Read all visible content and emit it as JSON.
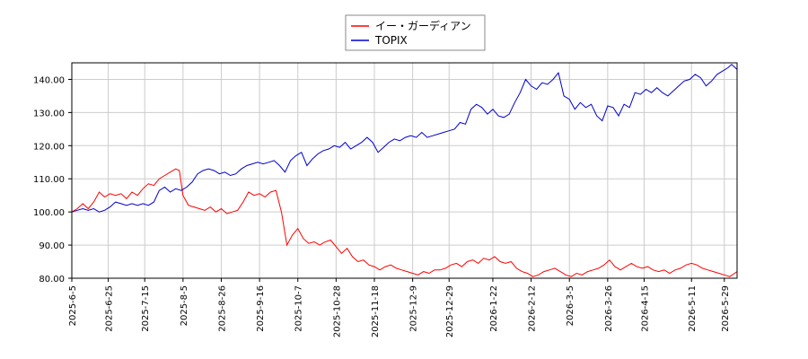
{
  "chart_data": {
    "type": "line",
    "title": "",
    "xlabel": "",
    "ylabel": "",
    "ylim": [
      80,
      145
    ],
    "y_ticks": [
      80,
      90,
      100,
      110,
      120,
      130,
      140
    ],
    "y_tick_labels": [
      "80.00",
      "90.00",
      "100.00",
      "110.00",
      "120.00",
      "130.00",
      "140.00"
    ],
    "x_range": [
      "2025-06-05",
      "2026-06-05"
    ],
    "x_ticks": [
      "2025-06-05",
      "2025-06-25",
      "2025-07-15",
      "2025-08-05",
      "2025-08-26",
      "2025-09-16",
      "2025-10-07",
      "2025-10-28",
      "2025-11-18",
      "2025-12-09",
      "2025-12-29",
      "2026-01-22",
      "2026-02-12",
      "2026-03-05",
      "2026-03-26",
      "2026-04-15",
      "2026-05-11",
      "2026-05-29"
    ],
    "x_tick_labels": [
      "2025-6-5",
      "2025-6-25",
      "2025-7-15",
      "2025-8-5",
      "2025-8-26",
      "2025-9-16",
      "2025-10-7",
      "2025-10-28",
      "2025-11-18",
      "2025-12-9",
      "2025-12-29",
      "2026-1-22",
      "2026-2-12",
      "2026-3-5",
      "2026-3-26",
      "2026-4-15",
      "2026-5-11",
      "2026-5-29"
    ],
    "grid": true,
    "legend_placement": "top-center",
    "series": [
      {
        "name": "イー・ガーディアン",
        "color": "#ff0000",
        "points": [
          [
            "2025-06-05",
            100.0
          ],
          [
            "2025-06-08",
            101.0
          ],
          [
            "2025-06-11",
            102.5
          ],
          [
            "2025-06-14",
            101.0
          ],
          [
            "2025-06-17",
            103.0
          ],
          [
            "2025-06-20",
            106.0
          ],
          [
            "2025-06-23",
            104.5
          ],
          [
            "2025-06-26",
            105.5
          ],
          [
            "2025-06-29",
            105.0
          ],
          [
            "2025-07-02",
            105.5
          ],
          [
            "2025-07-05",
            104.0
          ],
          [
            "2025-07-08",
            106.0
          ],
          [
            "2025-07-11",
            105.0
          ],
          [
            "2025-07-14",
            107.0
          ],
          [
            "2025-07-17",
            108.5
          ],
          [
            "2025-07-20",
            108.0
          ],
          [
            "2025-07-23",
            110.0
          ],
          [
            "2025-07-26",
            111.0
          ],
          [
            "2025-07-29",
            112.0
          ],
          [
            "2025-08-01",
            113.0
          ],
          [
            "2025-08-03",
            112.5
          ],
          [
            "2025-08-05",
            105.0
          ],
          [
            "2025-08-08",
            102.0
          ],
          [
            "2025-08-11",
            101.5
          ],
          [
            "2025-08-14",
            101.0
          ],
          [
            "2025-08-17",
            100.5
          ],
          [
            "2025-08-20",
            101.5
          ],
          [
            "2025-08-23",
            100.0
          ],
          [
            "2025-08-26",
            101.0
          ],
          [
            "2025-08-29",
            99.5
          ],
          [
            "2025-09-01",
            100.0
          ],
          [
            "2025-09-04",
            100.5
          ],
          [
            "2025-09-07",
            103.0
          ],
          [
            "2025-09-10",
            106.0
          ],
          [
            "2025-09-13",
            105.0
          ],
          [
            "2025-09-16",
            105.5
          ],
          [
            "2025-09-19",
            104.5
          ],
          [
            "2025-09-22",
            106.0
          ],
          [
            "2025-09-25",
            106.5
          ],
          [
            "2025-09-28",
            100.0
          ],
          [
            "2025-10-01",
            90.0
          ],
          [
            "2025-10-04",
            93.0
          ],
          [
            "2025-10-07",
            95.0
          ],
          [
            "2025-10-10",
            92.0
          ],
          [
            "2025-10-13",
            90.5
          ],
          [
            "2025-10-16",
            91.0
          ],
          [
            "2025-10-19",
            90.0
          ],
          [
            "2025-10-22",
            91.0
          ],
          [
            "2025-10-25",
            91.5
          ],
          [
            "2025-10-28",
            89.5
          ],
          [
            "2025-10-31",
            87.5
          ],
          [
            "2025-11-03",
            89.0
          ],
          [
            "2025-11-06",
            86.5
          ],
          [
            "2025-11-09",
            85.0
          ],
          [
            "2025-11-12",
            85.5
          ],
          [
            "2025-11-15",
            84.0
          ],
          [
            "2025-11-18",
            83.5
          ],
          [
            "2025-11-21",
            82.5
          ],
          [
            "2025-11-24",
            83.5
          ],
          [
            "2025-11-27",
            84.0
          ],
          [
            "2025-11-30",
            83.0
          ],
          [
            "2025-12-03",
            82.5
          ],
          [
            "2025-12-06",
            82.0
          ],
          [
            "2025-12-09",
            81.5
          ],
          [
            "2025-12-12",
            81.0
          ],
          [
            "2025-12-15",
            82.0
          ],
          [
            "2025-12-18",
            81.5
          ],
          [
            "2025-12-21",
            82.5
          ],
          [
            "2025-12-24",
            82.5
          ],
          [
            "2025-12-27",
            83.0
          ],
          [
            "2025-12-30",
            84.0
          ],
          [
            "2026-01-02",
            84.5
          ],
          [
            "2026-01-05",
            83.5
          ],
          [
            "2026-01-08",
            85.0
          ],
          [
            "2026-01-11",
            85.5
          ],
          [
            "2026-01-14",
            84.5
          ],
          [
            "2026-01-17",
            86.0
          ],
          [
            "2026-01-20",
            85.5
          ],
          [
            "2026-01-23",
            86.5
          ],
          [
            "2026-01-26",
            85.0
          ],
          [
            "2026-01-29",
            84.5
          ],
          [
            "2026-02-01",
            85.0
          ],
          [
            "2026-02-04",
            83.0
          ],
          [
            "2026-02-07",
            82.0
          ],
          [
            "2026-02-10",
            81.5
          ],
          [
            "2026-02-13",
            80.5
          ],
          [
            "2026-02-16",
            81.0
          ],
          [
            "2026-02-19",
            82.0
          ],
          [
            "2026-02-22",
            82.5
          ],
          [
            "2026-02-25",
            83.0
          ],
          [
            "2026-02-28",
            82.0
          ],
          [
            "2026-03-03",
            81.0
          ],
          [
            "2026-03-06",
            80.5
          ],
          [
            "2026-03-09",
            81.5
          ],
          [
            "2026-03-12",
            81.0
          ],
          [
            "2026-03-15",
            82.0
          ],
          [
            "2026-03-18",
            82.5
          ],
          [
            "2026-03-21",
            83.0
          ],
          [
            "2026-03-24",
            84.0
          ],
          [
            "2026-03-27",
            85.5
          ],
          [
            "2026-03-30",
            83.5
          ],
          [
            "2026-04-02",
            82.5
          ],
          [
            "2026-04-05",
            83.5
          ],
          [
            "2026-04-08",
            84.5
          ],
          [
            "2026-04-11",
            83.5
          ],
          [
            "2026-04-14",
            83.0
          ],
          [
            "2026-04-17",
            83.5
          ],
          [
            "2026-04-20",
            82.5
          ],
          [
            "2026-04-23",
            82.0
          ],
          [
            "2026-04-26",
            82.5
          ],
          [
            "2026-04-29",
            81.5
          ],
          [
            "2026-05-02",
            82.5
          ],
          [
            "2026-05-05",
            83.0
          ],
          [
            "2026-05-08",
            84.0
          ],
          [
            "2026-05-11",
            84.5
          ],
          [
            "2026-05-14",
            84.0
          ],
          [
            "2026-05-17",
            83.0
          ],
          [
            "2026-05-20",
            82.5
          ],
          [
            "2026-05-23",
            82.0
          ],
          [
            "2026-05-26",
            81.5
          ],
          [
            "2026-05-29",
            81.0
          ],
          [
            "2026-06-01",
            80.5
          ],
          [
            "2026-06-05",
            82.0
          ]
        ]
      },
      {
        "name": "TOPIX",
        "color": "#0000cc",
        "points": [
          [
            "2025-06-05",
            100.0
          ],
          [
            "2025-06-08",
            100.5
          ],
          [
            "2025-06-11",
            101.0
          ],
          [
            "2025-06-14",
            100.5
          ],
          [
            "2025-06-17",
            101.0
          ],
          [
            "2025-06-20",
            100.0
          ],
          [
            "2025-06-23",
            100.5
          ],
          [
            "2025-06-26",
            101.5
          ],
          [
            "2025-06-29",
            103.0
          ],
          [
            "2025-07-02",
            102.5
          ],
          [
            "2025-07-05",
            102.0
          ],
          [
            "2025-07-08",
            102.5
          ],
          [
            "2025-07-11",
            102.0
          ],
          [
            "2025-07-14",
            102.5
          ],
          [
            "2025-07-17",
            102.0
          ],
          [
            "2025-07-20",
            103.0
          ],
          [
            "2025-07-23",
            106.5
          ],
          [
            "2025-07-26",
            107.5
          ],
          [
            "2025-07-29",
            106.0
          ],
          [
            "2025-08-01",
            107.0
          ],
          [
            "2025-08-04",
            106.5
          ],
          [
            "2025-08-07",
            107.5
          ],
          [
            "2025-08-10",
            109.0
          ],
          [
            "2025-08-13",
            111.5
          ],
          [
            "2025-08-16",
            112.5
          ],
          [
            "2025-08-19",
            113.0
          ],
          [
            "2025-08-22",
            112.5
          ],
          [
            "2025-08-25",
            111.5
          ],
          [
            "2025-08-28",
            112.0
          ],
          [
            "2025-08-31",
            111.0
          ],
          [
            "2025-09-03",
            111.5
          ],
          [
            "2025-09-06",
            113.0
          ],
          [
            "2025-09-09",
            114.0
          ],
          [
            "2025-09-12",
            114.5
          ],
          [
            "2025-09-15",
            115.0
          ],
          [
            "2025-09-18",
            114.5
          ],
          [
            "2025-09-21",
            115.0
          ],
          [
            "2025-09-24",
            115.5
          ],
          [
            "2025-09-27",
            114.0
          ],
          [
            "2025-09-30",
            112.0
          ],
          [
            "2025-10-03",
            115.5
          ],
          [
            "2025-10-06",
            117.0
          ],
          [
            "2025-10-09",
            118.0
          ],
          [
            "2025-10-12",
            114.0
          ],
          [
            "2025-10-15",
            116.0
          ],
          [
            "2025-10-18",
            117.5
          ],
          [
            "2025-10-21",
            118.5
          ],
          [
            "2025-10-24",
            119.0
          ],
          [
            "2025-10-27",
            120.0
          ],
          [
            "2025-10-30",
            119.5
          ],
          [
            "2025-11-02",
            121.0
          ],
          [
            "2025-11-05",
            119.0
          ],
          [
            "2025-11-08",
            120.0
          ],
          [
            "2025-11-11",
            121.0
          ],
          [
            "2025-11-14",
            122.5
          ],
          [
            "2025-11-17",
            121.0
          ],
          [
            "2025-11-20",
            118.0
          ],
          [
            "2025-11-23",
            119.5
          ],
          [
            "2025-11-26",
            121.0
          ],
          [
            "2025-11-29",
            122.0
          ],
          [
            "2025-12-02",
            121.5
          ],
          [
            "2025-12-05",
            122.5
          ],
          [
            "2025-12-08",
            123.0
          ],
          [
            "2025-12-11",
            122.5
          ],
          [
            "2025-12-14",
            124.0
          ],
          [
            "2025-12-17",
            122.5
          ],
          [
            "2025-12-20",
            123.0
          ],
          [
            "2025-12-23",
            123.5
          ],
          [
            "2025-12-26",
            124.0
          ],
          [
            "2025-12-29",
            124.5
          ],
          [
            "2026-01-01",
            125.0
          ],
          [
            "2026-01-04",
            127.0
          ],
          [
            "2026-01-07",
            126.5
          ],
          [
            "2026-01-10",
            131.0
          ],
          [
            "2026-01-13",
            132.5
          ],
          [
            "2026-01-16",
            131.5
          ],
          [
            "2026-01-19",
            129.5
          ],
          [
            "2026-01-22",
            131.0
          ],
          [
            "2026-01-25",
            129.0
          ],
          [
            "2026-01-28",
            128.5
          ],
          [
            "2026-01-31",
            129.5
          ],
          [
            "2026-02-03",
            133.0
          ],
          [
            "2026-02-06",
            136.0
          ],
          [
            "2026-02-09",
            140.0
          ],
          [
            "2026-02-12",
            138.0
          ],
          [
            "2026-02-15",
            137.0
          ],
          [
            "2026-02-18",
            139.0
          ],
          [
            "2026-02-21",
            138.5
          ],
          [
            "2026-02-24",
            140.0
          ],
          [
            "2026-02-27",
            142.0
          ],
          [
            "2026-03-02",
            135.0
          ],
          [
            "2026-03-05",
            134.0
          ],
          [
            "2026-03-08",
            131.0
          ],
          [
            "2026-03-11",
            133.0
          ],
          [
            "2026-03-14",
            131.5
          ],
          [
            "2026-03-17",
            132.5
          ],
          [
            "2026-03-20",
            129.0
          ],
          [
            "2026-03-23",
            127.5
          ],
          [
            "2026-03-26",
            132.0
          ],
          [
            "2026-03-29",
            131.5
          ],
          [
            "2026-04-01",
            129.0
          ],
          [
            "2026-04-04",
            132.5
          ],
          [
            "2026-04-07",
            131.5
          ],
          [
            "2026-04-10",
            136.0
          ],
          [
            "2026-04-13",
            135.5
          ],
          [
            "2026-04-16",
            137.0
          ],
          [
            "2026-04-19",
            136.0
          ],
          [
            "2026-04-22",
            137.5
          ],
          [
            "2026-04-25",
            136.0
          ],
          [
            "2026-04-28",
            135.0
          ],
          [
            "2026-05-01",
            136.5
          ],
          [
            "2026-05-04",
            138.0
          ],
          [
            "2026-05-07",
            139.5
          ],
          [
            "2026-05-10",
            140.0
          ],
          [
            "2026-05-13",
            141.5
          ],
          [
            "2026-05-16",
            140.5
          ],
          [
            "2026-05-19",
            138.0
          ],
          [
            "2026-05-22",
            139.5
          ],
          [
            "2026-05-25",
            141.5
          ],
          [
            "2026-05-28",
            142.5
          ],
          [
            "2026-05-31",
            143.5
          ],
          [
            "2026-06-02",
            144.5
          ],
          [
            "2026-06-05",
            143.0
          ]
        ]
      }
    ]
  }
}
